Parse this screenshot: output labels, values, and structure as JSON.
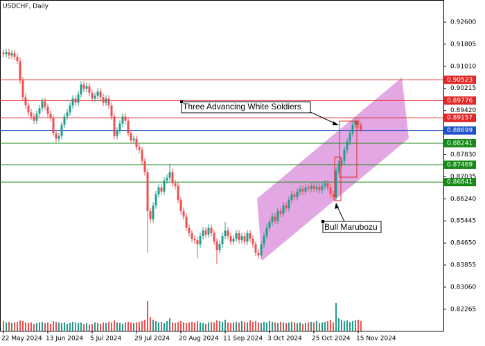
{
  "chart_data": {
    "type": "candlestick",
    "title": "USDCHF, Daily",
    "annotations": [
      "Three Advancing White Soldiers",
      "Bull Marubozu"
    ],
    "categories": [
      "22 May 2024",
      null,
      null,
      null,
      null,
      null,
      null,
      null,
      null,
      null,
      null,
      null,
      null,
      null,
      null,
      null,
      "13 Jun 2024",
      null,
      null,
      null,
      null,
      null,
      null,
      null,
      null,
      null,
      null,
      null,
      null,
      null,
      null,
      null,
      "5 Jul 2024",
      null,
      null,
      null,
      null,
      null,
      null,
      null,
      null,
      null,
      null,
      null,
      null,
      null,
      null,
      null,
      "29 Jul 2024",
      null,
      null,
      null,
      null,
      null,
      null,
      null,
      null,
      null,
      null,
      null,
      null,
      null,
      null,
      null,
      "20 Aug 2024",
      null,
      null,
      null,
      null,
      null,
      null,
      null,
      null,
      null,
      null,
      null,
      null,
      null,
      null,
      null,
      "11 Sep 2024",
      null,
      null,
      null,
      null,
      null,
      null,
      null,
      null,
      null,
      null,
      null,
      null,
      null,
      null,
      null,
      "3 Oct 2024",
      null,
      null,
      null,
      null,
      null,
      null,
      null,
      null,
      null,
      null,
      null,
      null,
      null,
      null,
      null,
      "25 Oct 2024",
      null,
      null,
      null,
      null,
      null,
      null,
      null,
      null,
      null,
      null,
      null,
      null,
      null,
      null,
      null,
      "15 Nov 2024",
      null
    ],
    "open": [
      0.915,
      0.9145,
      0.9152,
      0.914,
      0.9148,
      0.9135,
      0.912,
      0.905,
      0.899,
      0.896,
      0.8935,
      0.892,
      0.8905,
      0.893,
      0.895,
      0.8975,
      0.8955,
      0.893,
      0.8915,
      0.886,
      0.884,
      0.885,
      0.889,
      0.892,
      0.8935,
      0.896,
      0.8985,
      0.897,
      0.9,
      0.9035,
      0.902,
      0.903,
      0.9005,
      0.8985,
      0.8995,
      0.901,
      0.899,
      0.897,
      0.8985,
      0.896,
      0.892,
      0.885,
      0.887,
      0.8895,
      0.892,
      0.8905,
      0.886,
      0.8835,
      0.884,
      0.881,
      0.88,
      0.876,
      0.872,
      0.858,
      0.855,
      0.86,
      0.864,
      0.8665,
      0.865,
      0.869,
      0.87,
      0.872,
      0.868,
      0.867,
      0.862,
      0.858,
      0.856,
      0.852,
      0.85,
      0.848,
      0.8475,
      0.846,
      0.849,
      0.851,
      0.8495,
      0.852,
      0.85,
      0.847,
      0.844,
      0.846,
      0.849,
      0.851,
      0.849,
      0.847,
      0.848,
      0.85,
      0.8475,
      0.849,
      0.847,
      0.85,
      0.848,
      0.846,
      0.843,
      0.842,
      0.846,
      0.849,
      0.852,
      0.854,
      0.856,
      0.8545,
      0.858,
      0.857,
      0.86,
      0.859,
      0.862,
      0.864,
      0.863,
      0.865,
      0.866,
      0.865,
      0.8665,
      0.866,
      0.867,
      0.866,
      0.8668,
      0.8655,
      0.867,
      0.868,
      0.8665,
      0.864,
      0.863,
      0.8725,
      0.875,
      0.876,
      0.88,
      0.883,
      0.886,
      0.889,
      0.8905,
      0.889
    ],
    "high": [
      0.9162,
      0.9164,
      0.9164,
      0.916,
      0.916,
      0.9147,
      0.9132,
      0.9062,
      0.9002,
      0.8972,
      0.8947,
      0.8932,
      0.8942,
      0.8962,
      0.8987,
      0.8987,
      0.8967,
      0.8942,
      0.8927,
      0.8872,
      0.8862,
      0.8902,
      0.8932,
      0.8947,
      0.8972,
      0.8997,
      0.8997,
      0.9012,
      0.9047,
      0.9047,
      0.9042,
      0.9042,
      0.9017,
      0.9007,
      0.9022,
      0.9022,
      0.9002,
      0.8997,
      0.8997,
      0.8972,
      0.8932,
      0.8882,
      0.8907,
      0.8932,
      0.8932,
      0.8917,
      0.8872,
      0.8852,
      0.8852,
      0.8822,
      0.8812,
      0.8772,
      0.8732,
      0.8592,
      0.8612,
      0.8652,
      0.8677,
      0.8677,
      0.8702,
      0.8712,
      0.875,
      0.8732,
      0.8692,
      0.8682,
      0.8632,
      0.8592,
      0.8572,
      0.8532,
      0.8512,
      0.8492,
      0.8487,
      0.8502,
      0.8522,
      0.8522,
      0.8532,
      0.8532,
      0.8512,
      0.8482,
      0.8472,
      0.8502,
      0.854,
      0.8522,
      0.8502,
      0.8492,
      0.8512,
      0.8512,
      0.8502,
      0.8502,
      0.8512,
      0.8512,
      0.8492,
      0.8472,
      0.8442,
      0.8472,
      0.8502,
      0.8532,
      0.8552,
      0.8572,
      0.8572,
      0.8592,
      0.8592,
      0.8612,
      0.8612,
      0.8632,
      0.8652,
      0.8652,
      0.8662,
      0.8672,
      0.8672,
      0.8677,
      0.8677,
      0.8682,
      0.8682,
      0.868,
      0.868,
      0.8682,
      0.8692,
      0.8692,
      0.8677,
      0.8652,
      0.8737,
      0.8762,
      0.8772,
      0.8812,
      0.8842,
      0.8872,
      0.8902,
      0.8917,
      0.8917,
      0.8902
    ],
    "low": [
      0.9133,
      0.9133,
      0.9128,
      0.9128,
      0.9123,
      0.9108,
      0.9038,
      0.8978,
      0.8948,
      0.8923,
      0.8908,
      0.8893,
      0.8893,
      0.8918,
      0.8938,
      0.8943,
      0.8918,
      0.8903,
      0.8848,
      0.8828,
      0.8828,
      0.8838,
      0.8878,
      0.8908,
      0.8923,
      0.8948,
      0.8958,
      0.8958,
      0.8988,
      0.9008,
      0.9008,
      0.8993,
      0.8973,
      0.8973,
      0.8983,
      0.8978,
      0.8958,
      0.8958,
      0.8948,
      0.8908,
      0.8838,
      0.8838,
      0.8858,
      0.8883,
      0.8893,
      0.8848,
      0.8823,
      0.8823,
      0.8798,
      0.8788,
      0.8748,
      0.8708,
      0.843,
      0.8538,
      0.8538,
      0.8588,
      0.8628,
      0.8638,
      0.8638,
      0.8678,
      0.8688,
      0.8668,
      0.8658,
      0.8608,
      0.8568,
      0.8548,
      0.8508,
      0.8488,
      0.8468,
      0.8463,
      0.841,
      0.8448,
      0.8478,
      0.8483,
      0.8483,
      0.8488,
      0.8458,
      0.839,
      0.8428,
      0.8448,
      0.8478,
      0.8478,
      0.8458,
      0.8458,
      0.8468,
      0.8463,
      0.8463,
      0.8458,
      0.8458,
      0.8468,
      0.8448,
      0.8418,
      0.8408,
      0.8408,
      0.8448,
      0.8478,
      0.8508,
      0.8528,
      0.8533,
      0.8533,
      0.8558,
      0.8558,
      0.8578,
      0.8578,
      0.8608,
      0.8618,
      0.8618,
      0.8638,
      0.8638,
      0.8638,
      0.8648,
      0.8648,
      0.8648,
      0.8648,
      0.8643,
      0.8643,
      0.8658,
      0.8653,
      0.8628,
      0.8618,
      0.8618,
      0.8713,
      0.8738,
      0.8748,
      0.8788,
      0.8818,
      0.8848,
      0.8878,
      0.8878,
      0.8865
    ],
    "close": [
      0.9145,
      0.9152,
      0.914,
      0.9148,
      0.9135,
      0.912,
      0.905,
      0.899,
      0.896,
      0.8935,
      0.892,
      0.8905,
      0.893,
      0.895,
      0.8975,
      0.8955,
      0.893,
      0.8915,
      0.886,
      0.884,
      0.885,
      0.889,
      0.892,
      0.8935,
      0.896,
      0.8985,
      0.897,
      0.9,
      0.9035,
      0.902,
      0.903,
      0.9005,
      0.8985,
      0.8995,
      0.901,
      0.899,
      0.897,
      0.8985,
      0.896,
      0.892,
      0.885,
      0.887,
      0.8895,
      0.892,
      0.8905,
      0.886,
      0.8835,
      0.884,
      0.881,
      0.88,
      0.876,
      0.872,
      0.858,
      0.855,
      0.86,
      0.864,
      0.8665,
      0.865,
      0.869,
      0.87,
      0.872,
      0.868,
      0.867,
      0.862,
      0.858,
      0.856,
      0.852,
      0.85,
      0.848,
      0.8475,
      0.846,
      0.849,
      0.851,
      0.8495,
      0.852,
      0.85,
      0.847,
      0.844,
      0.846,
      0.849,
      0.851,
      0.849,
      0.847,
      0.848,
      0.85,
      0.8475,
      0.849,
      0.847,
      0.85,
      0.848,
      0.846,
      0.843,
      0.842,
      0.846,
      0.849,
      0.852,
      0.854,
      0.856,
      0.8545,
      0.858,
      0.857,
      0.86,
      0.859,
      0.862,
      0.864,
      0.863,
      0.865,
      0.866,
      0.865,
      0.8665,
      0.866,
      0.867,
      0.866,
      0.8668,
      0.8655,
      0.867,
      0.868,
      0.8665,
      0.864,
      0.863,
      0.8725,
      0.875,
      0.876,
      0.88,
      0.883,
      0.886,
      0.889,
      0.8905,
      0.889,
      0.88699
    ],
    "volume": [
      14,
      12,
      13,
      11,
      12,
      13,
      15,
      14,
      12,
      11,
      12,
      10,
      11,
      12,
      13,
      11,
      12,
      10,
      14,
      13,
      12,
      11,
      12,
      10,
      11,
      13,
      12,
      11,
      12,
      10,
      11,
      9,
      10,
      12,
      11,
      10,
      12,
      11,
      13,
      12,
      15,
      12,
      11,
      10,
      12,
      13,
      12,
      11,
      12,
      13,
      14,
      16,
      43,
      20,
      16,
      14,
      12,
      13,
      11,
      14,
      18,
      12,
      11,
      13,
      14,
      12,
      11,
      12,
      13,
      12,
      14,
      12,
      11,
      10,
      12,
      13,
      12,
      15,
      14,
      13,
      16,
      12,
      11,
      12,
      13,
      12,
      14,
      13,
      12,
      15,
      13,
      14,
      12,
      11,
      13,
      12,
      14,
      13,
      12,
      11,
      13,
      12,
      11,
      12,
      13,
      12,
      11,
      12,
      10,
      11,
      12,
      13,
      12,
      14,
      11,
      12,
      13,
      14,
      16,
      12,
      40,
      18,
      16,
      14,
      15,
      13,
      14,
      15,
      16,
      14
    ],
    "bull_color": "#1f9d8a",
    "bear_color": "#ef4f4f",
    "levels": [
      0.90523,
      0.89776,
      0.89157,
      0.88699,
      0.88241,
      0.87469,
      0.86841
    ],
    "level_colors": [
      "#e02828",
      "#e02828",
      "#e02828",
      "#2050c8",
      "#188a18",
      "#188a18",
      "#188a18"
    ],
    "ylim": [
      0.81489,
      0.93397
    ],
    "yticks": [
      {
        "value": 0.926,
        "label": "0.92600"
      },
      0.91805,
      {
        "value": 0.9101,
        "label": "0.91010"
      },
      0.90215,
      {
        "value": 0.8942,
        "label": "0.89420"
      },
      {
        "value": 0.8783,
        "label": "0.87830"
      },
      0.87035,
      {
        "value": 0.8624,
        "label": "0.86240"
      },
      0.85445,
      {
        "value": 0.8465,
        "label": "0.84650"
      },
      0.83855,
      {
        "value": 0.8306,
        "label": "0.83060"
      },
      0.82265
    ]
  }
}
